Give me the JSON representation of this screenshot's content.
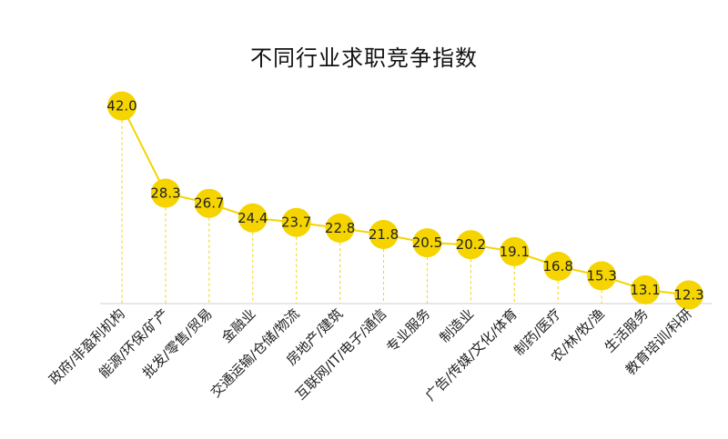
{
  "chart_data": {
    "type": "line",
    "title": "不同行业求职竞争指数",
    "xlabel": "",
    "ylabel": "",
    "categories": [
      "政府/非盈利机构",
      "能源/环保/矿产",
      "批发/零售/贸易",
      "金融业",
      "交通运输/仓储/物流",
      "房地产/建筑",
      "互联网/IT/电子/通信",
      "专业服务",
      "制造业",
      "广告/传媒/文化/体育",
      "制药/医疗",
      "农/林/牧/渔",
      "生活服务",
      "教育培训/科研"
    ],
    "values": [
      42.0,
      28.3,
      26.7,
      24.4,
      23.7,
      22.8,
      21.8,
      20.5,
      20.2,
      19.1,
      16.8,
      15.3,
      13.1,
      12.3
    ],
    "data_labels": [
      "42.0",
      "28.3",
      "26.7",
      "24.4",
      "23.7",
      "22.8",
      "21.8",
      "20.5",
      "20.2",
      "19.1",
      "16.8",
      "15.3",
      "13.1",
      "12.3"
    ],
    "grid": false,
    "legend": "none",
    "colors": {
      "line": "#F5D400",
      "marker": "#F5D400",
      "drop_line": "#F5D400",
      "baseline": "#cfcfcf",
      "label": "#222222"
    }
  }
}
